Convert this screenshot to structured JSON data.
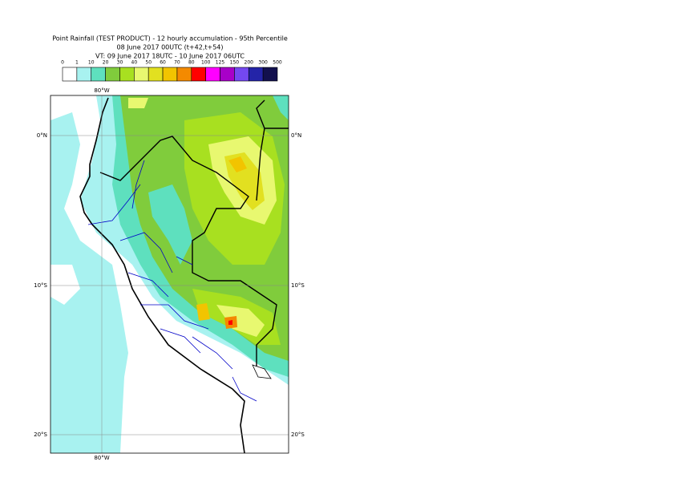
{
  "header": {
    "title": "Point Rainfall (TEST PRODUCT) - 12 hourly accumulation - 95th Percentile",
    "run": "08 June 2017 00UTC (t+42,t+54)",
    "valid": "VT: 09 June 2017 18UTC - 10 June 2017 06UTC"
  },
  "legend": {
    "labels": [
      "0",
      "1",
      "10",
      "20",
      "30",
      "40",
      "50",
      "60",
      "70",
      "80",
      "100",
      "125",
      "150",
      "200",
      "300",
      "500"
    ],
    "colors": [
      "#ffffff",
      "#a8f2f0",
      "#5ee0be",
      "#80cc3c",
      "#a8e020",
      "#e8f870",
      "#e2e020",
      "#f2c400",
      "#f48a00",
      "#ff0000",
      "#ff00ff",
      "#a800c8",
      "#7448f0",
      "#2424a8",
      "#12104e"
    ]
  },
  "map": {
    "lon_top": "80°W",
    "lon_bottom": "80°W",
    "lat_left": [
      "0°N",
      "10°S",
      "20°S"
    ],
    "lat_right": [
      "0°N",
      "10°S",
      "20°S"
    ]
  }
}
